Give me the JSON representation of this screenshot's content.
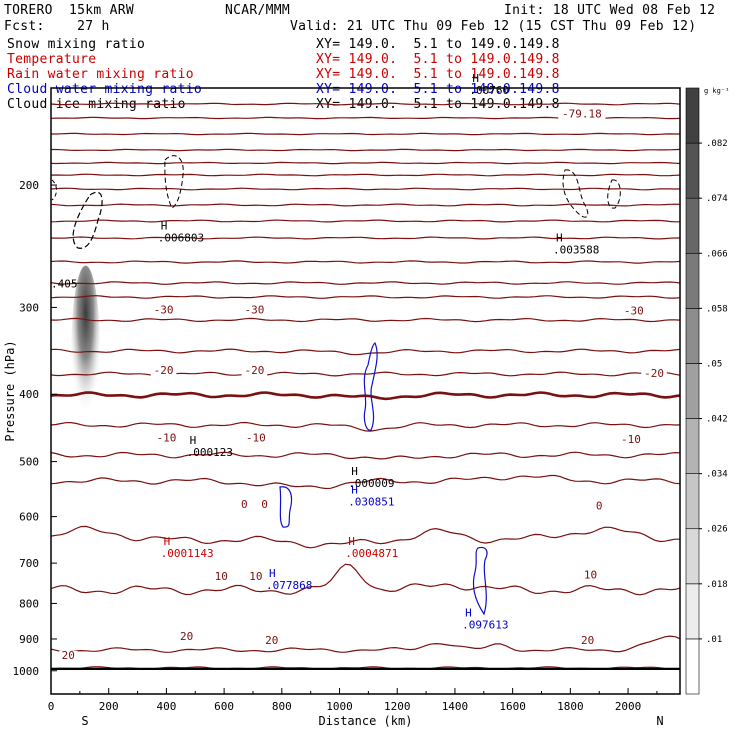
{
  "header": {
    "model": "TORERO  15km ARW",
    "center": "NCAR/MMM",
    "init": "Init: 18 UTC Wed 08 Feb 12",
    "fcst": "Fcst:    27 h",
    "valid": "Valid: 21 UTC Thu 09 Feb 12 (15 CST Thu 09 Feb 12)"
  },
  "fields": [
    {
      "name": "Snow mixing ratio",
      "xy": "XY= 149.0.  5.1 to 149.0.149.8",
      "color": "#000000"
    },
    {
      "name": "Temperature",
      "xy": "XY= 149.0.  5.1 to 149.0.149.8",
      "color": "#cc0000"
    },
    {
      "name": "Rain water mixing ratio",
      "xy": "XY= 149.0.  5.1 to 149.0.149.8",
      "color": "#cc0000"
    },
    {
      "name": "Cloud water mixing ratio",
      "xy": "XY= 149.0.  5.1 to 149.0.149.8",
      "color": "#0000cc"
    },
    {
      "name": "Cloud ice mixing ratio",
      "xy": "XY= 149.0.  5.1 to 149.0.149.8",
      "color": "#000000"
    }
  ],
  "chart_data": {
    "type": "cross-section",
    "xlabel": "Distance (km)",
    "ylabel": "Pressure (hPa)",
    "xlim": [
      0,
      2180
    ],
    "ylim": [
      1080,
      145
    ],
    "y_scale": "log",
    "x_ticks": [
      0,
      200,
      400,
      600,
      800,
      1000,
      1200,
      1400,
      1600,
      1800,
      2000
    ],
    "y_ticks": [
      200,
      300,
      400,
      500,
      600,
      700,
      800,
      900,
      1000
    ],
    "endpoints": {
      "left": "S",
      "right": "N"
    },
    "colorbar": {
      "unit": "g kg⁻¹",
      "levels": [
        0.01,
        0.018,
        0.026,
        0.034,
        0.042,
        0.05,
        0.058,
        0.066,
        0.074,
        0.082
      ],
      "labels": [
        ".01",
        ".018",
        ".026",
        ".034",
        ".042",
        ".05",
        ".058",
        ".066",
        ".074",
        ".082"
      ]
    },
    "snow_max_region": {
      "x": [
        70,
        170
      ],
      "p": [
        270,
        420
      ]
    },
    "temperature_labels": [
      {
        "text": "-79.18",
        "x": 1840,
        "p": 160
      },
      {
        "text": "-30",
        "x": 390,
        "p": 306
      },
      {
        "text": "-30",
        "x": 705,
        "p": 306
      },
      {
        "text": "-30",
        "x": 2020,
        "p": 307
      },
      {
        "text": "-20",
        "x": 390,
        "p": 374
      },
      {
        "text": "-20",
        "x": 705,
        "p": 374
      },
      {
        "text": "-20",
        "x": 2090,
        "p": 378
      },
      {
        "text": "-10",
        "x": 400,
        "p": 468
      },
      {
        "text": "-10",
        "x": 710,
        "p": 468
      },
      {
        "text": "-10",
        "x": 2010,
        "p": 470
      },
      {
        "text": "0",
        "x": 670,
        "p": 583
      },
      {
        "text": "0",
        "x": 740,
        "p": 583
      },
      {
        "text": "0",
        "x": 1900,
        "p": 586
      },
      {
        "text": "10",
        "x": 590,
        "p": 740
      },
      {
        "text": "10",
        "x": 710,
        "p": 740
      },
      {
        "text": "10",
        "x": 1870,
        "p": 736
      },
      {
        "text": "20",
        "x": 470,
        "p": 903
      },
      {
        "text": "20",
        "x": 765,
        "p": 915
      },
      {
        "text": "20",
        "x": 1860,
        "p": 915
      },
      {
        "text": "20",
        "x": 60,
        "p": 961
      }
    ],
    "maxima": [
      {
        "field": "Cloud ice mixing ratio",
        "label": "H",
        "value": ".006803",
        "x": 370,
        "p": 241
      },
      {
        "field": "Cloud ice mixing ratio",
        "label": "H",
        "value": ".003588",
        "x": 1740,
        "p": 251
      },
      {
        "field": "Cloud ice mixing ratio",
        "label": "H",
        "value": ".00760",
        "x": 1450,
        "p": 148
      },
      {
        "field": "Snow mixing ratio",
        "label": "",
        "value": ".405",
        "x": 0,
        "p": 281
      },
      {
        "field": "Snow mixing ratio",
        "label": "H",
        "value": ".000123",
        "x": 470,
        "p": 491
      },
      {
        "field": "Snow mixing ratio",
        "label": "H",
        "value": ".000009",
        "x": 1030,
        "p": 544
      },
      {
        "field": "Cloud water mixing ratio",
        "label": "H",
        "value": ".030851",
        "x": 1030,
        "p": 578
      },
      {
        "field": "Rain water mixing ratio",
        "label": "H",
        "value": ".0001143",
        "x": 380,
        "p": 686
      },
      {
        "field": "Rain water mixing ratio",
        "label": "H",
        "value": ".0004871",
        "x": 1020,
        "p": 686
      },
      {
        "field": "Cloud water mixing ratio",
        "label": "H",
        "value": ".077868",
        "x": 745,
        "p": 763
      },
      {
        "field": "Cloud water mixing ratio",
        "label": "H",
        "value": ".097613",
        "x": 1425,
        "p": 870
      }
    ]
  }
}
